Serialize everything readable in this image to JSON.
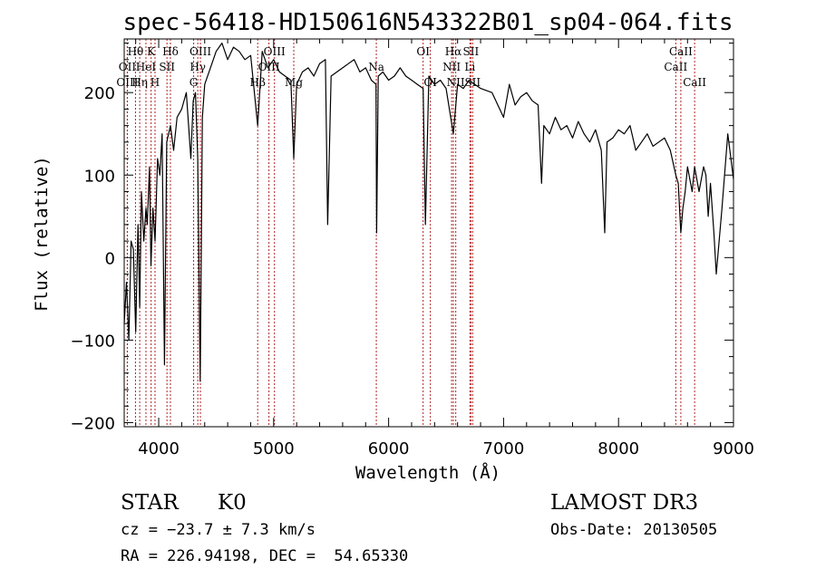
{
  "chart_data": {
    "type": "line",
    "title": "spec-56418-HD150616N543322B01_sp04-064.fits",
    "xlabel": "Wavelength (Å)",
    "ylabel": "Flux (relative)",
    "xlim": [
      3700,
      9000
    ],
    "ylim": [
      -205,
      265
    ],
    "x_ticks": [
      4000,
      5000,
      6000,
      7000,
      8000,
      9000
    ],
    "y_ticks": [
      -200,
      -100,
      0,
      100,
      200
    ],
    "grid": false,
    "line_color": "#000000",
    "marker_color": "#b22222",
    "series": [
      {
        "x": [
          3700,
          3720,
          3740,
          3760,
          3780,
          3800,
          3820,
          3835,
          3850,
          3870,
          3889,
          3900,
          3920,
          3933,
          3950,
          3968,
          3990,
          4010,
          4030,
          4050,
          4070,
          4102,
          4130,
          4160,
          4200,
          4240,
          4280,
          4300,
          4320,
          4340,
          4361,
          4380,
          4400,
          4450,
          4500,
          4550,
          4600,
          4650,
          4700,
          4750,
          4800,
          4861,
          4900,
          4950,
          5000,
          5050,
          5100,
          5150,
          5175,
          5200,
          5250,
          5300,
          5350,
          5400,
          5450,
          5470,
          5500,
          5550,
          5600,
          5650,
          5700,
          5750,
          5800,
          5850,
          5890,
          5896,
          5910,
          5950,
          6000,
          6050,
          6100,
          6150,
          6200,
          6250,
          6300,
          6320,
          6350,
          6400,
          6450,
          6500,
          6563,
          6600,
          6650,
          6700,
          6750,
          6800,
          6900,
          7000,
          7050,
          7100,
          7150,
          7200,
          7250,
          7300,
          7330,
          7350,
          7400,
          7450,
          7500,
          7550,
          7600,
          7650,
          7700,
          7750,
          7800,
          7850,
          7880,
          7900,
          7950,
          8000,
          8050,
          8100,
          8150,
          8200,
          8250,
          8300,
          8350,
          8400,
          8450,
          8498,
          8520,
          8542,
          8560,
          8580,
          8600,
          8640,
          8662,
          8700,
          8740,
          8760,
          8780,
          8800,
          8830,
          8850,
          8900,
          8950,
          9000
        ],
        "y": [
          -80,
          -30,
          -100,
          20,
          10,
          -90,
          40,
          -60,
          80,
          20,
          60,
          40,
          110,
          -10,
          60,
          20,
          120,
          100,
          150,
          -130,
          140,
          160,
          130,
          170,
          180,
          200,
          120,
          190,
          200,
          120,
          -150,
          170,
          210,
          230,
          250,
          260,
          240,
          255,
          250,
          240,
          245,
          160,
          250,
          230,
          240,
          225,
          220,
          215,
          120,
          210,
          225,
          230,
          220,
          235,
          240,
          40,
          220,
          225,
          230,
          235,
          240,
          225,
          230,
          215,
          210,
          30,
          220,
          225,
          215,
          220,
          230,
          220,
          215,
          210,
          205,
          40,
          220,
          210,
          215,
          205,
          150,
          210,
          205,
          215,
          210,
          205,
          200,
          170,
          210,
          185,
          195,
          200,
          190,
          185,
          90,
          160,
          150,
          170,
          155,
          160,
          145,
          165,
          150,
          140,
          155,
          130,
          30,
          140,
          145,
          155,
          150,
          160,
          130,
          140,
          150,
          135,
          140,
          145,
          130,
          100,
          90,
          30,
          60,
          80,
          110,
          80,
          110,
          80,
          110,
          100,
          50,
          90,
          30,
          -20,
          60,
          150,
          95
        ]
      }
    ],
    "lines": [
      {
        "label": "Hθ",
        "x": 3798,
        "row": 1
      },
      {
        "label": "OII",
        "x": 3727,
        "row": 2
      },
      {
        "label": "OIII",
        "x": 3727,
        "row": 3
      },
      {
        "label": "K",
        "x": 3934,
        "row": 1
      },
      {
        "label": "HeI",
        "x": 3889,
        "row": 2
      },
      {
        "label": "Hη",
        "x": 3835,
        "row": 3
      },
      {
        "label": "Hδ",
        "x": 4102,
        "row": 1
      },
      {
        "label": "SII",
        "x": 4072,
        "row": 2
      },
      {
        "label": "H",
        "x": 3968,
        "row": 3
      },
      {
        "label": "OIII",
        "x": 4363,
        "row": 1
      },
      {
        "label": "Hγ",
        "x": 4340,
        "row": 2
      },
      {
        "label": "G",
        "x": 4304,
        "row": 3
      },
      {
        "label": "OIII",
        "x": 5007,
        "row": 1
      },
      {
        "label": "OIII",
        "x": 4959,
        "row": 2
      },
      {
        "label": "Hβ",
        "x": 4861,
        "row": 3
      },
      {
        "label": "Mg",
        "x": 5175,
        "row": 3
      },
      {
        "label": "Na",
        "x": 5893,
        "row": 2
      },
      {
        "label": "OI",
        "x": 6300,
        "row": 1
      },
      {
        "label": "OI",
        "x": 6363,
        "row": 3
      },
      {
        "label": "Hα",
        "x": 6563,
        "row": 1
      },
      {
        "label": "SII",
        "x": 6716,
        "row": 1
      },
      {
        "label": "NII",
        "x": 6548,
        "row": 2
      },
      {
        "label": "Li",
        "x": 6707,
        "row": 2
      },
      {
        "label": "NII",
        "x": 6584,
        "row": 3
      },
      {
        "label": "SII",
        "x": 6731,
        "row": 3
      },
      {
        "label": "CaII",
        "x": 8542,
        "row": 1
      },
      {
        "label": "CaII",
        "x": 8498,
        "row": 2
      },
      {
        "label": "CaII",
        "x": 8662,
        "row": 3
      }
    ]
  },
  "info": {
    "class_label": "STAR",
    "subclass": "K0",
    "survey": "LAMOST DR3",
    "redshift_text": "cz = −23.7 ± 7.3 km/s",
    "obs_date": "Obs-Date: 20130505",
    "coords": "RA = 226.94198, DEC =  54.65330"
  }
}
